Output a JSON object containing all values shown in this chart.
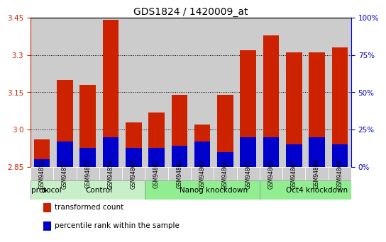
{
  "title": "GDS1824 / 1420009_at",
  "samples": [
    "GSM94856",
    "GSM94857",
    "GSM94858",
    "GSM94859",
    "GSM94860",
    "GSM94861",
    "GSM94862",
    "GSM94863",
    "GSM94864",
    "GSM94865",
    "GSM94866",
    "GSM94867",
    "GSM94868",
    "GSM94869"
  ],
  "transformed_count": [
    2.96,
    3.2,
    3.18,
    3.44,
    3.03,
    3.07,
    3.14,
    3.02,
    3.14,
    3.32,
    3.38,
    3.31,
    3.31,
    3.33
  ],
  "percentile_rank_pct": [
    5,
    17,
    13,
    20,
    13,
    13,
    14,
    17,
    10,
    20,
    20,
    15,
    20,
    15
  ],
  "y_min": 2.85,
  "y_max": 3.45,
  "y_ticks": [
    2.85,
    3.0,
    3.15,
    3.3,
    3.45
  ],
  "right_ticks": [
    0,
    25,
    50,
    75,
    100
  ],
  "right_tick_labels": [
    "0%",
    "25%",
    "50%",
    "75%",
    "100%"
  ],
  "groups": [
    {
      "label": "Control",
      "start": 0,
      "end": 5,
      "color": "#c8f0c8"
    },
    {
      "label": "Nanog knockdown",
      "start": 5,
      "end": 10,
      "color": "#90ee90"
    },
    {
      "label": "Oct4 knockdown",
      "start": 10,
      "end": 14,
      "color": "#90ee90"
    }
  ],
  "bar_color": "#cc2200",
  "blue_color": "#0000cc",
  "col_bg_color": "#cccccc",
  "plot_bg": "#ffffff",
  "left_label_color": "#cc2200",
  "right_label_color": "#0000cc",
  "protocol_label": "protocol",
  "legend_items": [
    {
      "label": "transformed count",
      "color": "#cc2200"
    },
    {
      "label": "percentile rank within the sample",
      "color": "#0000cc"
    }
  ]
}
